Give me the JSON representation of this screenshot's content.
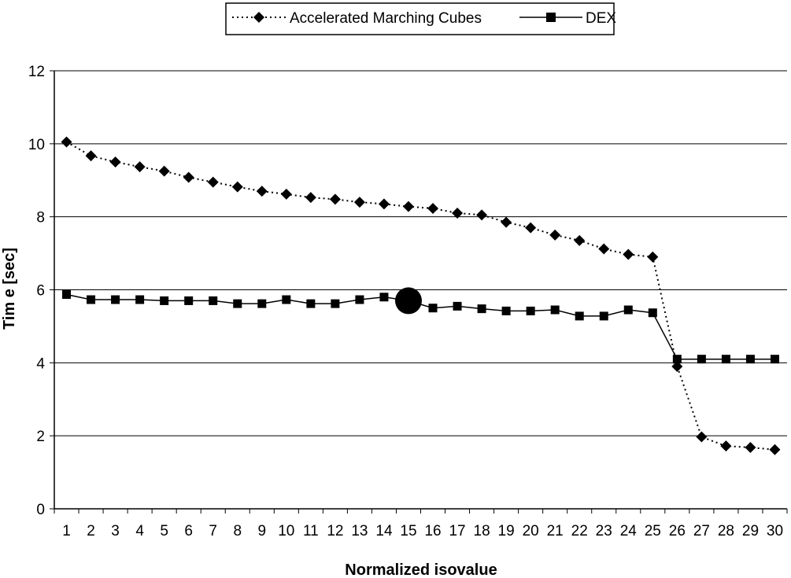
{
  "chart_data": {
    "type": "line",
    "title": "",
    "xlabel": "Normalized isovalue",
    "ylabel": "Tim e [sec]",
    "ylim": [
      0,
      12
    ],
    "y_ticks": [
      0,
      2,
      4,
      6,
      8,
      10,
      12
    ],
    "grid": true,
    "legend_position": "top-center",
    "categories": [
      "1",
      "2",
      "3",
      "4",
      "5",
      "6",
      "7",
      "8",
      "9",
      "10",
      "11",
      "12",
      "13",
      "14",
      "15",
      "16",
      "17",
      "18",
      "19",
      "20",
      "21",
      "22",
      "23",
      "24",
      "25",
      "26",
      "27",
      "28",
      "29",
      "30"
    ],
    "series": [
      {
        "name": "Accelerated Marching Cubes",
        "marker": "diamond",
        "line_style": "dotted",
        "color": "#000000",
        "values": [
          10.05,
          9.67,
          9.5,
          9.37,
          9.25,
          9.08,
          8.95,
          8.82,
          8.7,
          8.62,
          8.53,
          8.48,
          8.4,
          8.35,
          8.28,
          8.23,
          8.1,
          8.05,
          7.85,
          7.7,
          7.5,
          7.35,
          7.12,
          6.97,
          6.9,
          3.9,
          1.97,
          1.72,
          1.68,
          1.62
        ]
      },
      {
        "name": "DEX",
        "marker": "square",
        "line_style": "solid",
        "color": "#000000",
        "values": [
          5.87,
          5.73,
          5.73,
          5.73,
          5.7,
          5.7,
          5.7,
          5.62,
          5.62,
          5.73,
          5.62,
          5.62,
          5.73,
          5.8,
          5.7,
          5.5,
          5.55,
          5.48,
          5.42,
          5.42,
          5.45,
          5.28,
          5.28,
          5.45,
          5.37,
          4.1,
          4.1,
          4.1,
          4.1,
          4.1
        ]
      }
    ],
    "highlight": {
      "series": "DEX",
      "category": "15",
      "marker": "large-circle"
    }
  }
}
